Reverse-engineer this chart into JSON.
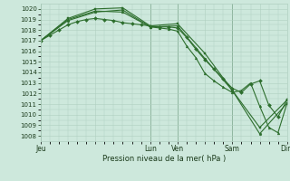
{
  "bg_color": "#cde8dc",
  "grid_color": "#b0cfc0",
  "line_color": "#2d6e2d",
  "title": "Pression niveau de la mer( hPa )",
  "ylim": [
    1007.5,
    1020.5
  ],
  "yticks": [
    1008,
    1009,
    1010,
    1011,
    1012,
    1013,
    1014,
    1015,
    1016,
    1017,
    1018,
    1019,
    1020
  ],
  "xtick_labels": [
    "Jeu",
    "",
    "Lun",
    "Ven",
    "",
    "Sam",
    "",
    "Dim"
  ],
  "xtick_positions": [
    0,
    6,
    12,
    15,
    18,
    21,
    24,
    27
  ],
  "xlim": [
    0,
    27
  ],
  "series1_x": [
    0,
    1,
    2,
    3,
    4,
    5,
    6,
    7,
    8,
    9,
    10,
    11,
    12,
    13,
    14,
    15,
    16,
    17,
    18,
    19,
    20,
    21,
    22,
    23,
    24,
    25,
    26,
    27
  ],
  "series1_y": [
    1017.0,
    1017.5,
    1018.0,
    1018.5,
    1018.8,
    1019.0,
    1019.1,
    1019.0,
    1018.9,
    1018.7,
    1018.6,
    1018.5,
    1018.4,
    1018.3,
    1018.3,
    1018.2,
    1017.3,
    1016.2,
    1015.2,
    1014.3,
    1013.4,
    1012.5,
    1012.1,
    1012.9,
    1013.2,
    1010.9,
    1009.8,
    1011.4
  ],
  "series2_x": [
    0,
    3,
    6,
    9,
    12,
    15,
    18,
    21,
    24,
    27
  ],
  "series2_y": [
    1017.0,
    1019.1,
    1020.0,
    1020.1,
    1018.4,
    1018.6,
    1015.8,
    1012.3,
    1008.8,
    1011.4
  ],
  "series3_x": [
    0,
    3,
    6,
    9,
    12,
    15,
    18,
    21,
    24,
    27
  ],
  "series3_y": [
    1017.0,
    1018.9,
    1019.7,
    1019.9,
    1018.3,
    1018.4,
    1015.3,
    1012.3,
    1008.2,
    1011.1
  ],
  "series4_x": [
    0,
    3,
    6,
    9,
    12,
    13,
    14,
    15,
    16,
    17,
    18,
    19,
    20,
    21,
    22,
    23,
    24,
    25,
    26,
    27
  ],
  "series4_y": [
    1017.0,
    1019.0,
    1019.8,
    1019.7,
    1018.3,
    1018.2,
    1018.1,
    1017.9,
    1016.5,
    1015.4,
    1013.9,
    1013.2,
    1012.6,
    1012.1,
    1012.3,
    1013.0,
    1010.8,
    1008.8,
    1008.3,
    1011.1
  ],
  "vline_positions": [
    0,
    12,
    15,
    21,
    27
  ],
  "vline_color": "#5a8a6a"
}
